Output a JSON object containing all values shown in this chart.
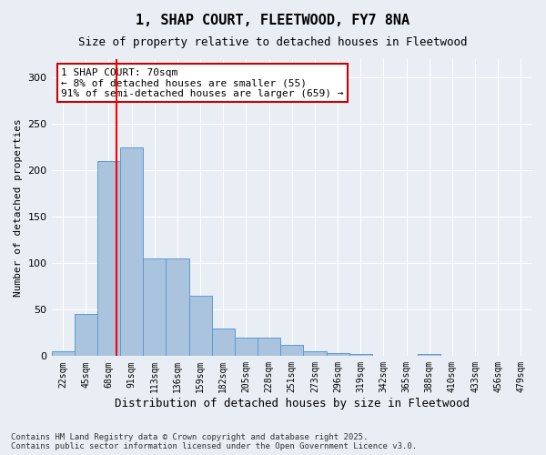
{
  "title": "1, SHAP COURT, FLEETWOOD, FY7 8NA",
  "subtitle": "Size of property relative to detached houses in Fleetwood",
  "xlabel": "Distribution of detached houses by size in Fleetwood",
  "ylabel": "Number of detached properties",
  "bins": [
    "22sqm",
    "45sqm",
    "68sqm",
    "91sqm",
    "113sqm",
    "136sqm",
    "159sqm",
    "182sqm",
    "205sqm",
    "228sqm",
    "251sqm",
    "273sqm",
    "296sqm",
    "319sqm",
    "342sqm",
    "365sqm",
    "388sqm",
    "410sqm",
    "433sqm",
    "456sqm",
    "479sqm"
  ],
  "values": [
    5,
    45,
    210,
    225,
    105,
    105,
    65,
    30,
    20,
    20,
    12,
    5,
    3,
    2,
    0,
    0,
    2,
    0,
    0,
    0,
    0
  ],
  "bar_color": "#aac4de",
  "bar_edge_color": "#5b9bd5",
  "background_color": "#e8eef4",
  "grid_color": "#ffffff",
  "red_line_x": 2.35,
  "annotation_text": "1 SHAP COURT: 70sqm\n← 8% of detached houses are smaller (55)\n91% of semi-detached houses are larger (659) →",
  "annotation_box_color": "#ffffff",
  "annotation_box_edge": "#cc0000",
  "footer_text": "Contains HM Land Registry data © Crown copyright and database right 2025.\nContains public sector information licensed under the Open Government Licence v3.0.",
  "ylim": [
    0,
    320
  ],
  "yticks": [
    0,
    50,
    100,
    150,
    200,
    250,
    300
  ]
}
